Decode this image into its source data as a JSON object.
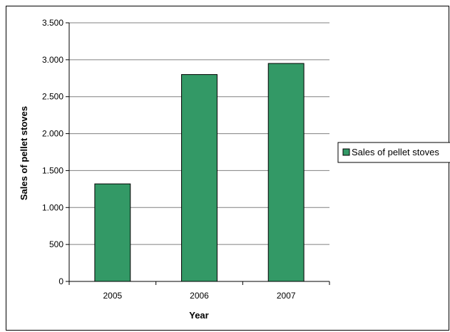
{
  "chart_data": {
    "type": "bar",
    "categories": [
      "2005",
      "2006",
      "2007"
    ],
    "series": [
      {
        "name": "Sales of pellet stoves",
        "values": [
          1320,
          2800,
          2950
        ],
        "color": "#339966"
      }
    ],
    "xlabel": "Year",
    "ylabel": "Sales of pellet stoves",
    "ylim": [
      0,
      3500
    ],
    "yticks": [
      0,
      500,
      1000,
      1500,
      2000,
      2500,
      3000,
      3500
    ],
    "ytick_labels": [
      "0",
      "500",
      "1.000",
      "1.500",
      "2.000",
      "2.500",
      "3.000",
      "3.500"
    ],
    "grid": true,
    "legend": "right"
  }
}
